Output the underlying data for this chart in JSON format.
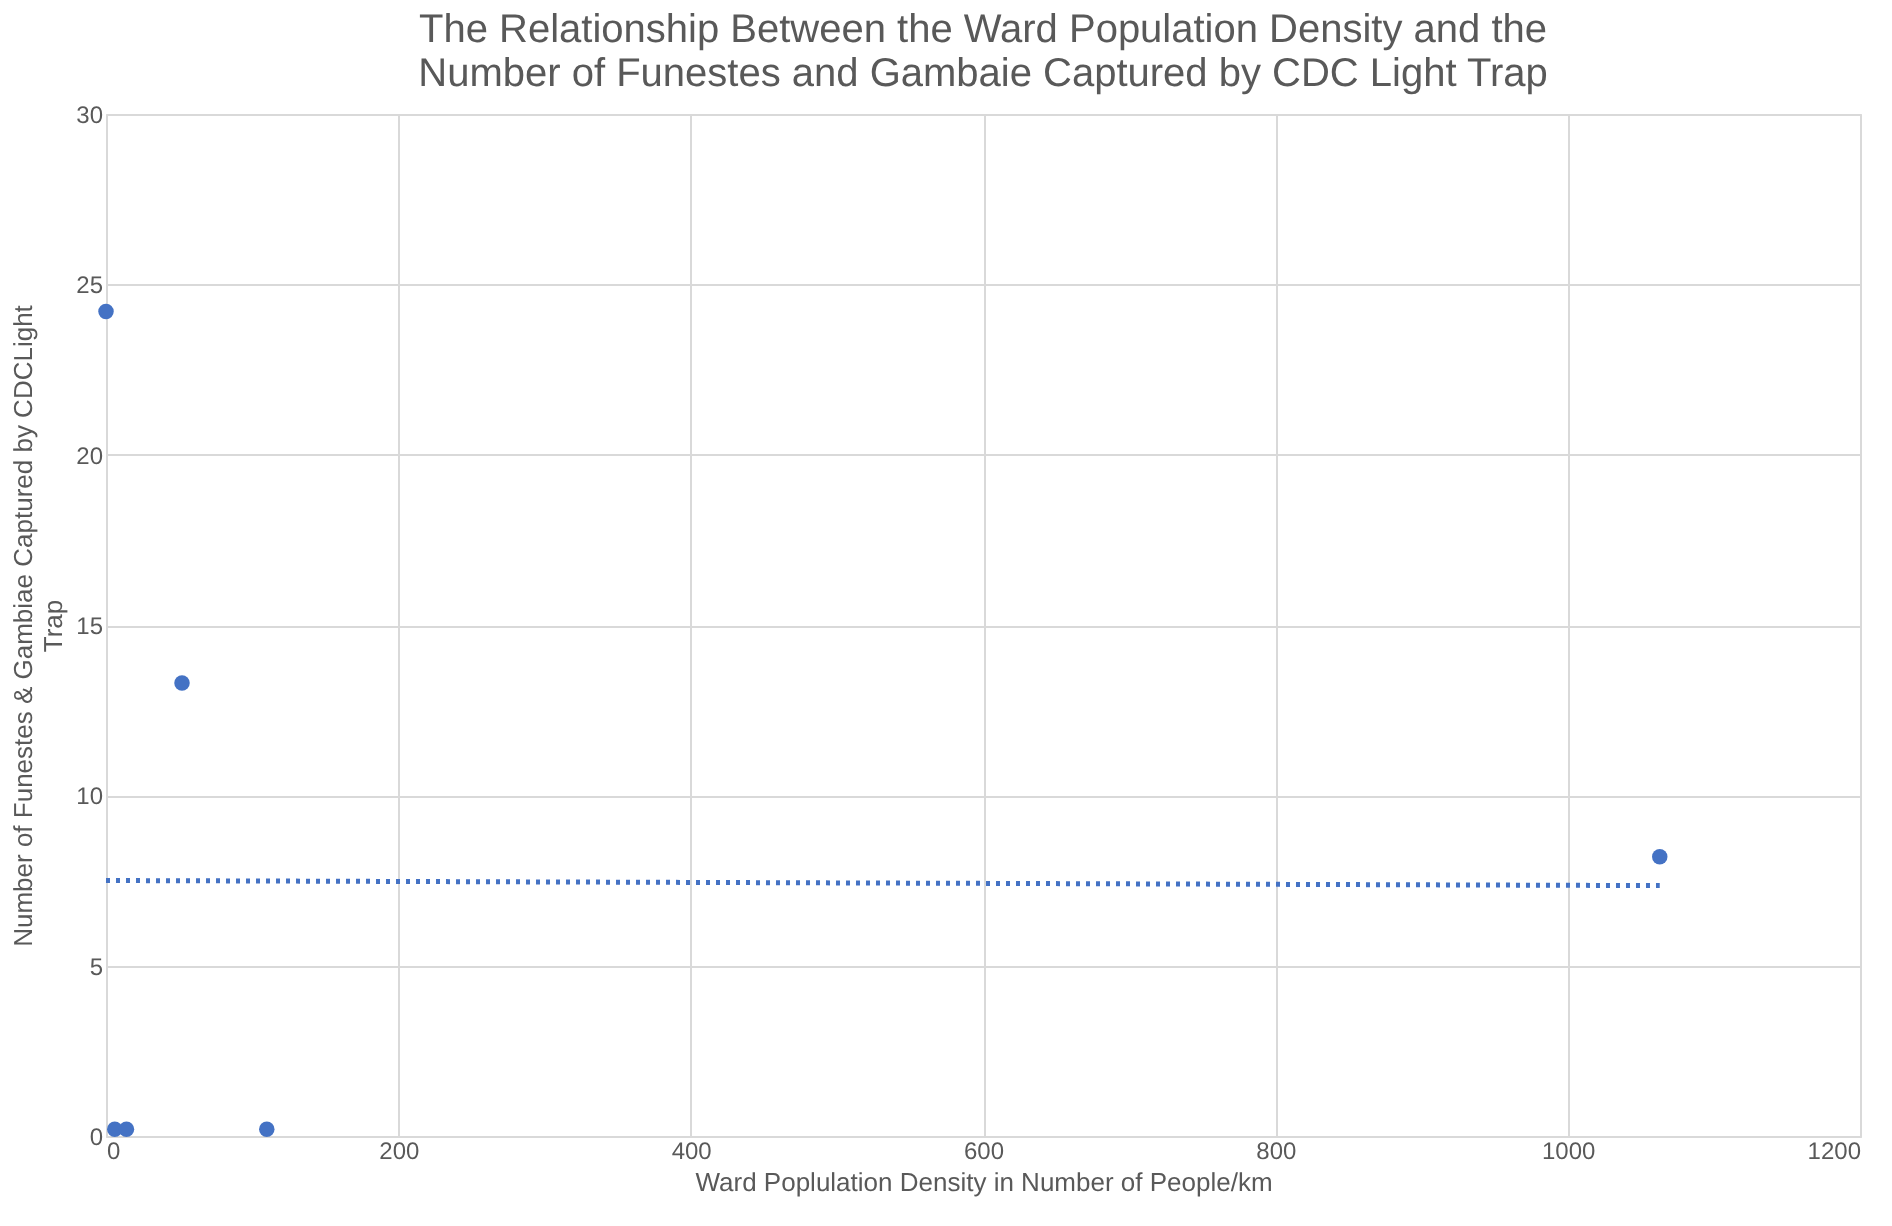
{
  "chart_data": {
    "type": "scatter",
    "title": "The Relationship Between the Ward Population Density and the\nNumber of Funestes and Gambaie Captured by CDC Light Trap",
    "xlabel": "Ward Poplulation Density in Number of People/km",
    "ylabel": "Number of Funestes & Gambiae Captured by CDCLight\nTrap",
    "series": [
      {
        "color": "#4472c4",
        "marker": "circle",
        "x": [
          0,
          6,
          14,
          52,
          110,
          1063
        ],
        "values": [
          24.2,
          0.2,
          0.2,
          13.3,
          0.2,
          8.2
        ]
      },
      {
        "type": "line",
        "color": "#4472c4",
        "line_style": "dotted",
        "x": [
          0,
          1063
        ],
        "values": [
          7.5,
          7.35
        ]
      }
    ],
    "xlim": [
      0,
      1200
    ],
    "xticks": [
      0,
      200,
      400,
      600,
      800,
      1000,
      1200
    ],
    "ylim": [
      0,
      30
    ],
    "yticks": [
      0,
      5,
      10,
      15,
      20,
      25,
      30
    ],
    "grid": true,
    "legend": false
  }
}
